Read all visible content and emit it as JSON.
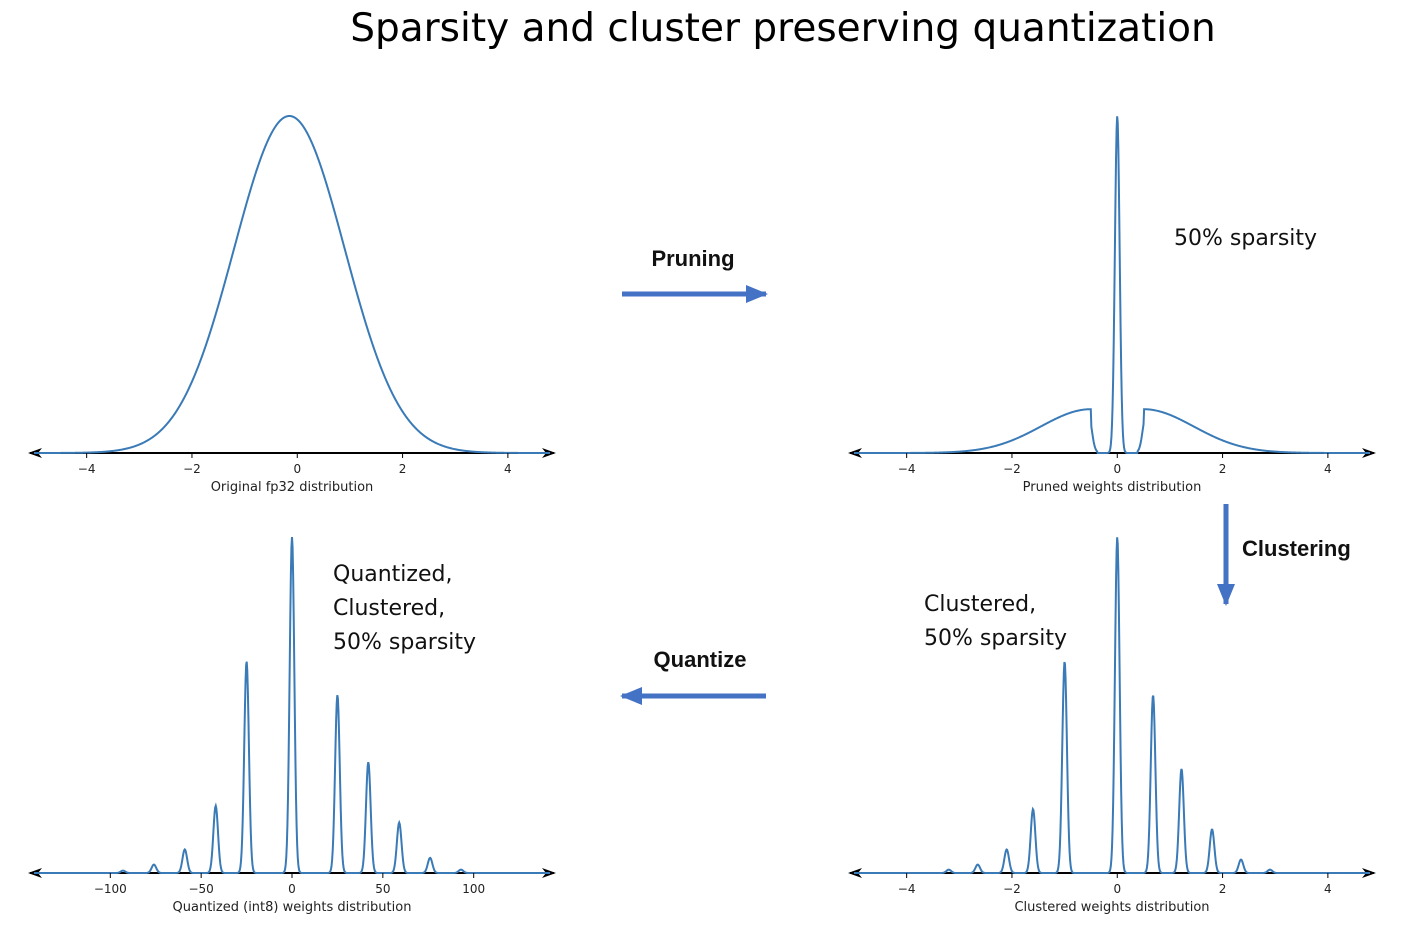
{
  "title": "Sparsity and cluster preserving quantization",
  "colors": {
    "curve": "#3a7ab6",
    "step_arrow": "#4472c4",
    "axis": "#000000"
  },
  "steps": {
    "pruning": "Pruning",
    "clustering": "Clustering",
    "quantize": "Quantize"
  },
  "chart_data": [
    {
      "id": "original",
      "type": "line",
      "xlabel": "Original fp32 distribution",
      "xlim": [
        -5,
        4.8
      ],
      "ticks": [
        -4,
        -2,
        0,
        2,
        4
      ],
      "tick_labels": [
        "−4",
        "−2",
        "0",
        "2",
        "4"
      ],
      "annotation": [],
      "shape": {
        "kind": "bell",
        "sigma": 1.0,
        "max_density": 1.0
      }
    },
    {
      "id": "pruned",
      "type": "line",
      "xlabel": "Pruned weights distribution",
      "xlim": [
        -5,
        4.8
      ],
      "ticks": [
        -4,
        -2,
        0,
        2,
        4
      ],
      "tick_labels": [
        "−4",
        "−2",
        "0",
        "2",
        "4"
      ],
      "annotation": [
        "50% sparsity"
      ],
      "shape": {
        "kind": "pruned",
        "spike_at": 0,
        "spike_height": 1.0,
        "shoulder_height": 0.13,
        "gap": [
          -0.5,
          0.5
        ]
      }
    },
    {
      "id": "clustered",
      "type": "line",
      "xlabel": "Clustered weights distribution",
      "xlim": [
        -5,
        4.8
      ],
      "ticks": [
        -4,
        -2,
        0,
        2,
        4
      ],
      "tick_labels": [
        "−4",
        "−2",
        "0",
        "2",
        "4"
      ],
      "annotation": [
        "Clustered,",
        "50% sparsity"
      ],
      "peaks": [
        {
          "x": -3.2,
          "h": 0.01
        },
        {
          "x": -2.65,
          "h": 0.025
        },
        {
          "x": -2.1,
          "h": 0.07
        },
        {
          "x": -1.6,
          "h": 0.19
        },
        {
          "x": -1.0,
          "h": 0.63
        },
        {
          "x": 0.0,
          "h": 1.0
        },
        {
          "x": 0.68,
          "h": 0.53
        },
        {
          "x": 1.22,
          "h": 0.31
        },
        {
          "x": 1.8,
          "h": 0.13
        },
        {
          "x": 2.35,
          "h": 0.04
        },
        {
          "x": 2.9,
          "h": 0.01
        }
      ]
    },
    {
      "id": "quantized",
      "type": "line",
      "xlabel": "Quantized (int8) weights distribution",
      "xlim": [
        -142,
        142
      ],
      "ticks": [
        -100,
        -50,
        0,
        50,
        100
      ],
      "tick_labels": [
        "−100",
        "−50",
        "0",
        "50",
        "100"
      ],
      "annotation": [
        "Quantized,",
        "Clustered,",
        "50% sparsity"
      ],
      "peaks": [
        {
          "x": -93,
          "h": 0.007
        },
        {
          "x": -76,
          "h": 0.025
        },
        {
          "x": -59,
          "h": 0.07
        },
        {
          "x": -42,
          "h": 0.2
        },
        {
          "x": -25,
          "h": 0.63
        },
        {
          "x": 0,
          "h": 1.0
        },
        {
          "x": 25,
          "h": 0.53
        },
        {
          "x": 42,
          "h": 0.33
        },
        {
          "x": 59,
          "h": 0.15
        },
        {
          "x": 76,
          "h": 0.045
        },
        {
          "x": 93,
          "h": 0.01
        }
      ]
    }
  ]
}
